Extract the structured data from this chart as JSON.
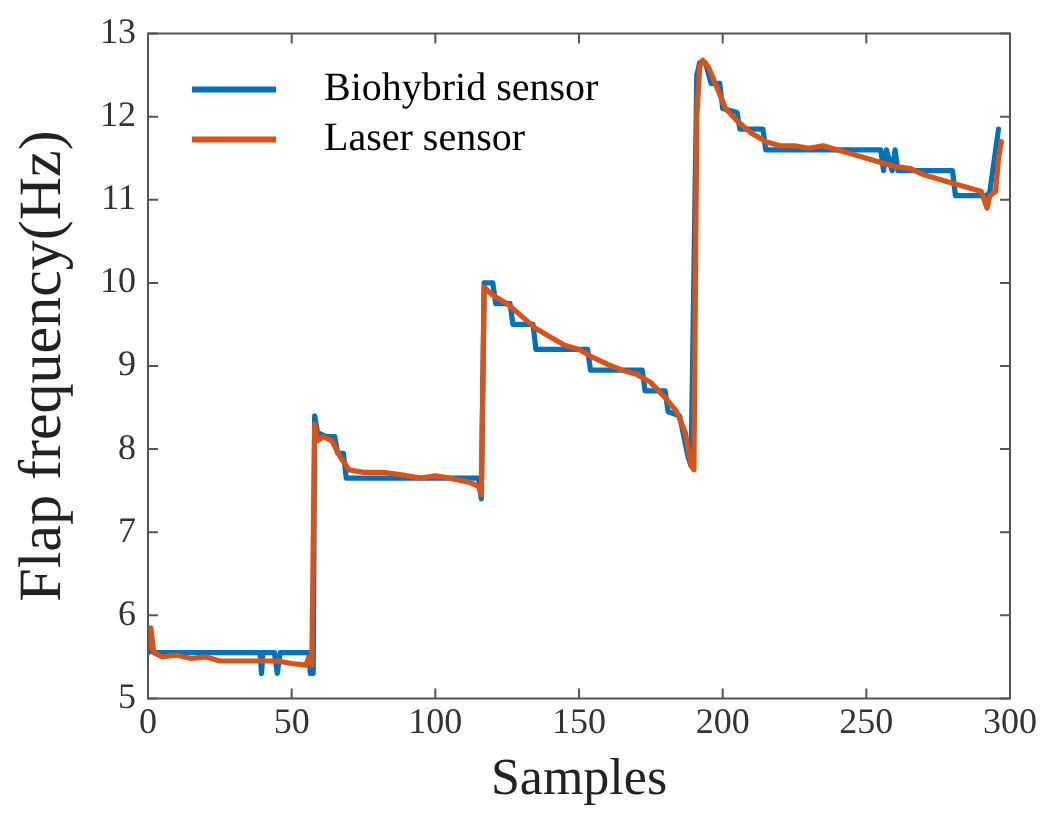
{
  "chart_data": {
    "type": "line",
    "xlabel": "Samples",
    "ylabel": "Flap frequency(Hz)",
    "xlim": [
      0,
      300
    ],
    "xticks": [
      0,
      50,
      100,
      150,
      200,
      250,
      300
    ],
    "ylim": [
      5,
      13
    ],
    "yticks": [
      5,
      6,
      7,
      8,
      9,
      10,
      11,
      12,
      13
    ],
    "grid": false,
    "legend": "top left",
    "marker": "none",
    "line_style": "solid",
    "series": [
      {
        "name": "Biohybrid sensor",
        "color": "#0072bd",
        "x": [
          0,
          1,
          2,
          39,
          39.5,
          40,
          44,
          45,
          46,
          56,
          56.5,
          57,
          57.5,
          58,
          59,
          62,
          65,
          66,
          68,
          69,
          115,
          116,
          117,
          120,
          121,
          126,
          127,
          134,
          135,
          153,
          154,
          172,
          173,
          180,
          181,
          185,
          188,
          189,
          191,
          192,
          194,
          196,
          199,
          200,
          205,
          206,
          214,
          215,
          255,
          256,
          257,
          259,
          260,
          261,
          280,
          281,
          292,
          293,
          295,
          296
        ],
        "values": [
          5.55,
          5.6,
          5.55,
          5.55,
          5.3,
          5.55,
          5.55,
          5.3,
          5.55,
          5.55,
          5.3,
          5.55,
          5.3,
          8.4,
          8.2,
          8.15,
          8.15,
          7.95,
          7.95,
          7.65,
          7.65,
          7.4,
          10.0,
          10.0,
          9.75,
          9.75,
          9.5,
          9.5,
          9.2,
          9.2,
          8.95,
          8.95,
          8.7,
          8.7,
          8.45,
          8.4,
          7.9,
          7.8,
          12.5,
          12.65,
          12.65,
          12.4,
          12.4,
          12.1,
          12.05,
          11.85,
          11.85,
          11.6,
          11.6,
          11.35,
          11.6,
          11.35,
          11.6,
          11.35,
          11.35,
          11.05,
          11.05,
          11.1,
          11.6,
          11.85
        ]
      },
      {
        "name": "Laser sensor",
        "color": "#d95319",
        "x": [
          0,
          1,
          2,
          5,
          10,
          15,
          20,
          25,
          35,
          45,
          50,
          55,
          56,
          57,
          58,
          59,
          61,
          64,
          67,
          70,
          75,
          82,
          90,
          95,
          100,
          105,
          112,
          115,
          116,
          117,
          120,
          125,
          130,
          135,
          140,
          145,
          150,
          155,
          160,
          165,
          170,
          175,
          180,
          184,
          187,
          189,
          190,
          191,
          192,
          193,
          195,
          198,
          201,
          205,
          210,
          215,
          220,
          225,
          230,
          235,
          240,
          245,
          250,
          255,
          260,
          265,
          270,
          275,
          280,
          285,
          290,
          292,
          293,
          295,
          296,
          297
        ],
        "values": [
          5.6,
          5.85,
          5.55,
          5.5,
          5.52,
          5.48,
          5.5,
          5.45,
          5.45,
          5.45,
          5.42,
          5.4,
          5.5,
          5.4,
          8.3,
          8.1,
          8.15,
          8.1,
          7.9,
          7.75,
          7.72,
          7.72,
          7.68,
          7.65,
          7.68,
          7.65,
          7.6,
          7.55,
          7.45,
          9.95,
          9.85,
          9.75,
          9.6,
          9.45,
          9.35,
          9.25,
          9.2,
          9.1,
          9.02,
          8.95,
          8.9,
          8.8,
          8.62,
          8.45,
          8.2,
          7.8,
          7.75,
          12.0,
          12.6,
          12.68,
          12.6,
          12.35,
          12.1,
          11.95,
          11.8,
          11.7,
          11.65,
          11.65,
          11.62,
          11.65,
          11.6,
          11.55,
          11.5,
          11.45,
          11.4,
          11.38,
          11.3,
          11.25,
          11.2,
          11.15,
          11.1,
          10.9,
          11.05,
          11.1,
          11.5,
          11.7
        ]
      }
    ]
  }
}
